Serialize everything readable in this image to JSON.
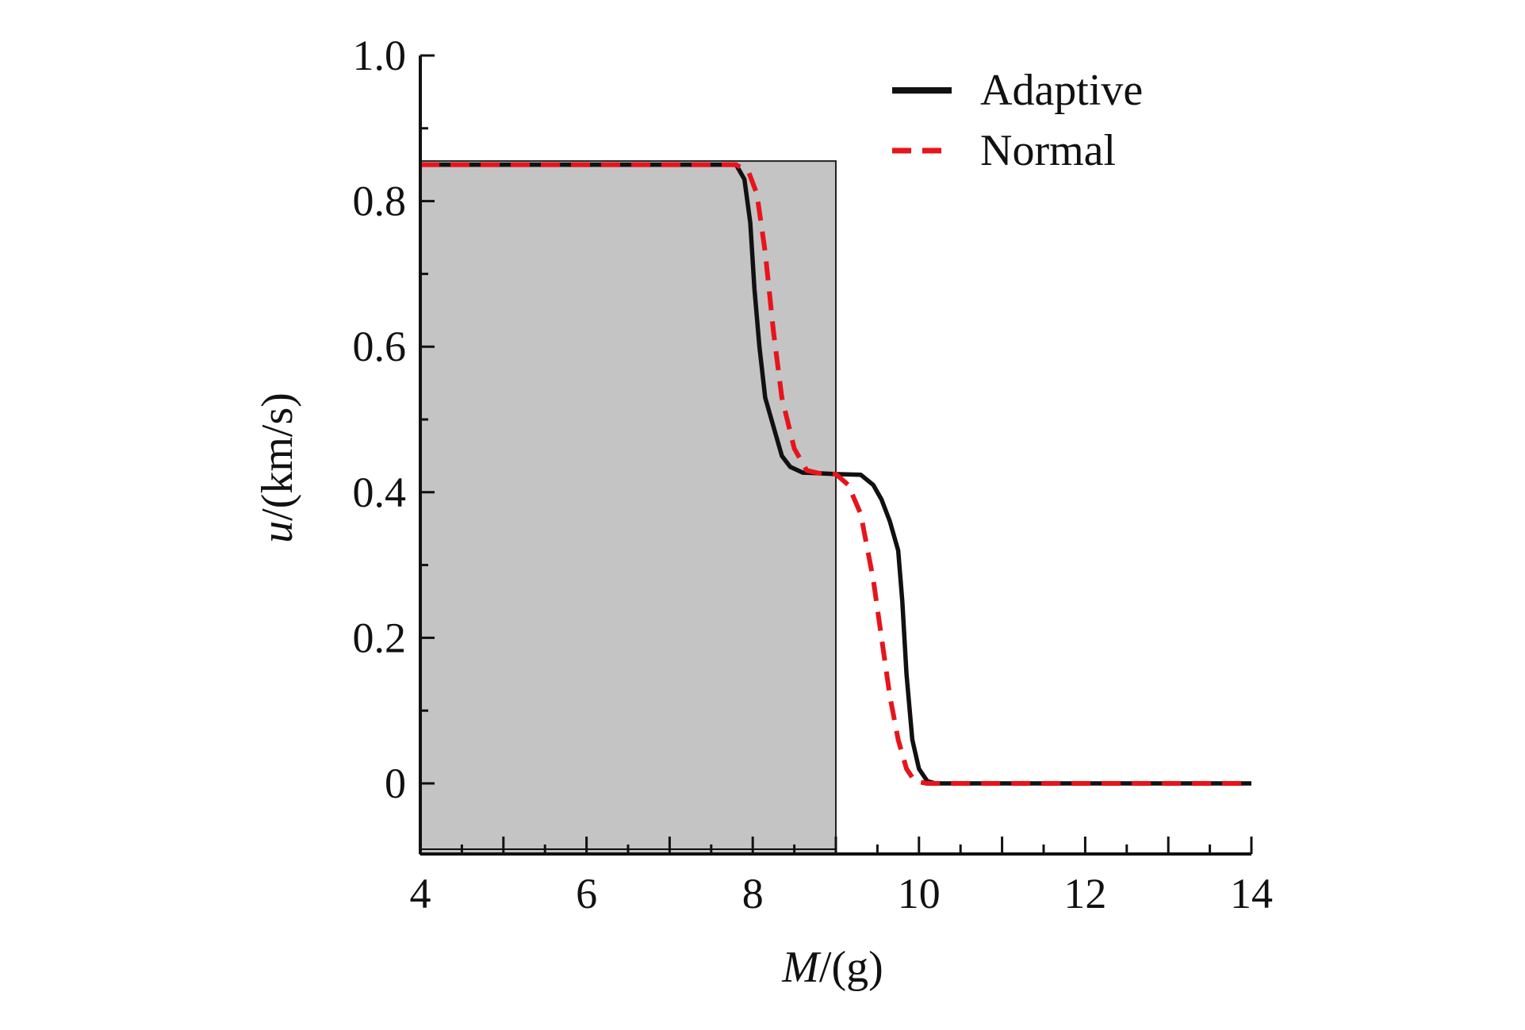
{
  "chart_data": {
    "type": "line",
    "title": "",
    "xlabel_italic": "M",
    "xlabel_rest": "/(g)",
    "ylabel_italic": "u",
    "ylabel_rest": "/(km/s)",
    "xlim": [
      4,
      14
    ],
    "ylim": [
      -0.097,
      1.0
    ],
    "xticks": [
      4,
      6,
      8,
      10,
      12,
      14
    ],
    "xtick_labels": [
      "4",
      "6",
      "8",
      "10",
      "12",
      "14"
    ],
    "yticks": [
      0,
      0.2,
      0.4,
      0.6,
      0.8,
      1.0
    ],
    "ytick_labels": [
      "0",
      "0.2",
      "0.4",
      "0.6",
      "0.8",
      "1.0"
    ],
    "grid": false,
    "legend_position": "top-right",
    "shaded_region": {
      "x": [
        4,
        9
      ],
      "y": [
        -0.097,
        0.855
      ],
      "color": "#c4c4c4"
    },
    "series": [
      {
        "name": "Adaptive",
        "color": "#111111",
        "style": "solid",
        "x": [
          4,
          7.8,
          7.9,
          7.97,
          8.02,
          8.08,
          8.15,
          8.25,
          8.35,
          8.45,
          8.6,
          9.0,
          9.3,
          9.45,
          9.55,
          9.65,
          9.75,
          9.8,
          9.85,
          9.92,
          10.0,
          10.1,
          10.2,
          14
        ],
        "y": [
          0.85,
          0.85,
          0.83,
          0.77,
          0.68,
          0.6,
          0.53,
          0.49,
          0.45,
          0.435,
          0.427,
          0.425,
          0.424,
          0.41,
          0.39,
          0.36,
          0.32,
          0.25,
          0.15,
          0.06,
          0.02,
          0.003,
          0,
          0
        ]
      },
      {
        "name": "Normal",
        "color": "#e8141b",
        "style": "dashed",
        "x": [
          4,
          7.8,
          7.95,
          8.05,
          8.15,
          8.25,
          8.35,
          8.5,
          8.65,
          8.8,
          9.0,
          9.15,
          9.3,
          9.45,
          9.55,
          9.65,
          9.75,
          9.85,
          9.95,
          10.1,
          14
        ],
        "y": [
          0.85,
          0.85,
          0.84,
          0.81,
          0.73,
          0.62,
          0.53,
          0.46,
          0.43,
          0.426,
          0.425,
          0.41,
          0.37,
          0.28,
          0.2,
          0.12,
          0.06,
          0.02,
          0.003,
          0,
          0
        ]
      }
    ]
  }
}
